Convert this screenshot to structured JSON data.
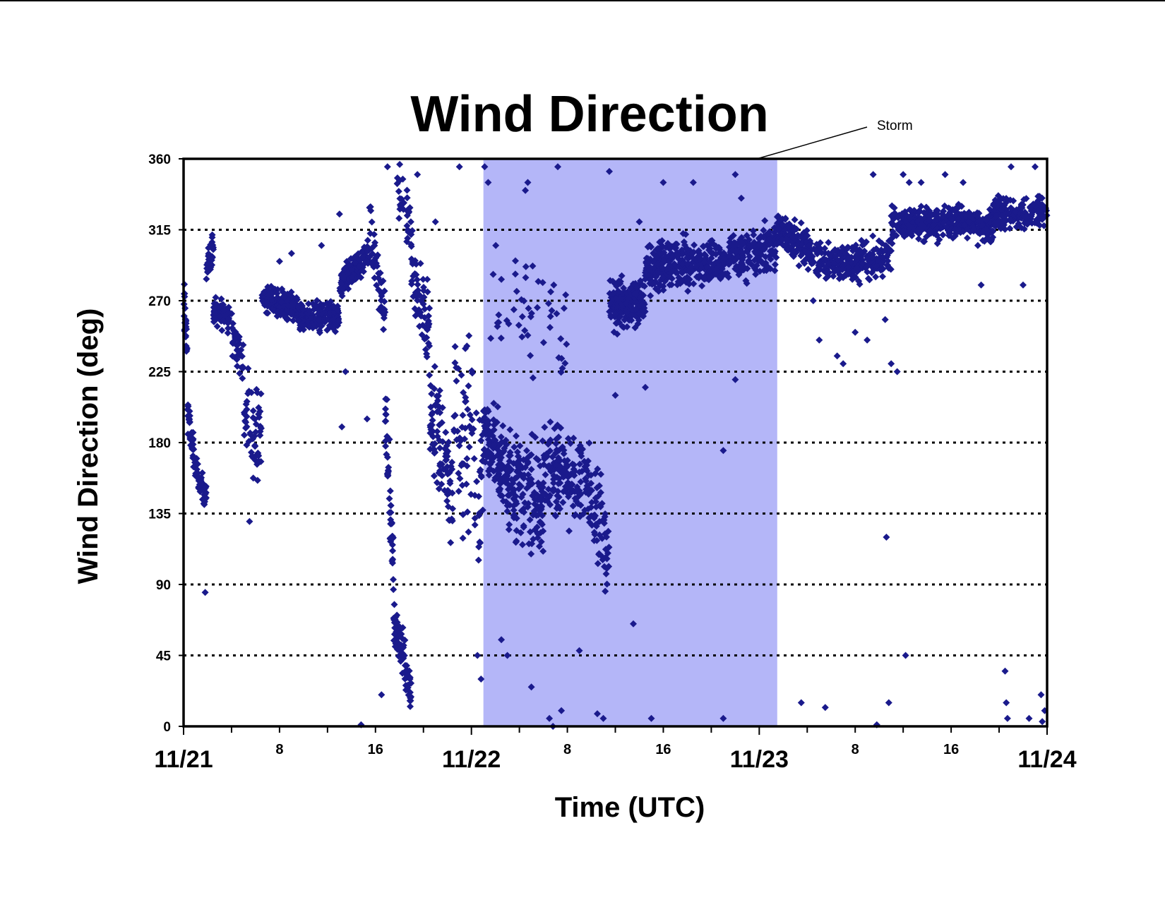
{
  "colors": {
    "marker": "#1a1a8c",
    "storm_band": "#b4b6f8",
    "gridline": "#000000"
  },
  "chart_data": {
    "type": "scatter",
    "title": "Wind Direction",
    "xlabel": "Time (UTC)",
    "ylabel": "Wind Direction (deg)",
    "x_unit": "hours since 11/21 00:00 UTC",
    "xlim": [
      0,
      72
    ],
    "ylim": [
      0,
      360
    ],
    "yticks": [
      0,
      45,
      90,
      135,
      180,
      225,
      270,
      315,
      360
    ],
    "y_gridlines": "dotted",
    "x_major_ticks": [
      {
        "x": 0,
        "label": "11/21"
      },
      {
        "x": 24,
        "label": "11/22"
      },
      {
        "x": 48,
        "label": "11/23"
      },
      {
        "x": 72,
        "label": "11/24"
      }
    ],
    "x_minor_labels": [
      {
        "x": 8,
        "label": "8"
      },
      {
        "x": 16,
        "label": "16"
      },
      {
        "x": 32,
        "label": "8"
      },
      {
        "x": 40,
        "label": "16"
      },
      {
        "x": 56,
        "label": "8"
      },
      {
        "x": 64,
        "label": "16"
      }
    ],
    "x_minor_ticks": [
      4,
      8,
      12,
      16,
      20,
      28,
      32,
      36,
      40,
      44,
      52,
      56,
      60,
      64,
      68
    ],
    "shaded_region": {
      "x_start": 25,
      "x_end": 49.5,
      "label": "Storm"
    },
    "annotation": {
      "text": "Storm"
    },
    "series": [
      {
        "marker": "diamond",
        "segments": [
          {
            "x0": 0.0,
            "x1": 0.3,
            "y0": 270,
            "y1": 240,
            "spread": 25,
            "n": 25
          },
          {
            "x0": 0.3,
            "x1": 1.0,
            "y0": 200,
            "y1": 165,
            "spread": 15,
            "n": 40
          },
          {
            "x0": 1.0,
            "x1": 1.9,
            "y0": 165,
            "y1": 145,
            "spread": 12,
            "n": 40
          },
          {
            "x0": 1.9,
            "x1": 2.5,
            "y0": 290,
            "y1": 305,
            "spread": 15,
            "n": 40
          },
          {
            "x0": 2.5,
            "x1": 3.8,
            "y0": 265,
            "y1": 258,
            "spread": 12,
            "n": 90
          },
          {
            "x0": 4.0,
            "x1": 5.0,
            "y0": 250,
            "y1": 230,
            "spread": 22,
            "n": 40
          },
          {
            "x0": 5.0,
            "x1": 6.5,
            "y0": 200,
            "y1": 185,
            "spread": 40,
            "n": 55
          },
          {
            "x0": 6.5,
            "x1": 9.5,
            "y0": 272,
            "y1": 265,
            "spread": 12,
            "n": 170
          },
          {
            "x0": 9.5,
            "x1": 13.0,
            "y0": 258,
            "y1": 260,
            "spread": 13,
            "n": 190
          },
          {
            "x0": 13.0,
            "x1": 15.5,
            "y0": 280,
            "y1": 300,
            "spread": 14,
            "n": 130
          },
          {
            "x0": 15.5,
            "x1": 16.8,
            "y0": 315,
            "y1": 260,
            "spread": 30,
            "n": 45
          },
          {
            "x0": 16.8,
            "x1": 17.5,
            "y0": 200,
            "y1": 100,
            "spread": 40,
            "n": 45
          },
          {
            "x0": 17.5,
            "x1": 19.0,
            "y0": 70,
            "y1": 20,
            "spread": 22,
            "n": 75
          },
          {
            "x0": 17.8,
            "x1": 19.2,
            "y0": 345,
            "y1": 305,
            "spread": 25,
            "n": 35
          },
          {
            "x0": 19.0,
            "x1": 20.5,
            "y0": 290,
            "y1": 255,
            "spread": 40,
            "n": 55
          },
          {
            "x0": 20.5,
            "x1": 22.5,
            "y0": 200,
            "y1": 150,
            "spread": 55,
            "n": 85
          },
          {
            "x0": 22.5,
            "x1": 25.0,
            "y0": 200,
            "y1": 150,
            "spread": 100,
            "n": 75
          },
          {
            "x0": 25.0,
            "x1": 27.5,
            "y0": 185,
            "y1": 155,
            "spread": 40,
            "n": 150
          },
          {
            "x0": 27.5,
            "x1": 30.0,
            "y0": 155,
            "y1": 140,
            "spread": 50,
            "n": 130
          },
          {
            "x0": 30.0,
            "x1": 33.5,
            "y0": 165,
            "y1": 155,
            "spread": 40,
            "n": 150
          },
          {
            "x0": 33.5,
            "x1": 35.5,
            "y0": 160,
            "y1": 110,
            "spread": 45,
            "n": 75
          },
          {
            "x0": 25.5,
            "x1": 32.0,
            "y0": 280,
            "y1": 250,
            "spread": 55,
            "n": 50
          },
          {
            "x0": 35.5,
            "x1": 38.5,
            "y0": 265,
            "y1": 270,
            "spread": 22,
            "n": 180
          },
          {
            "x0": 38.5,
            "x1": 42.0,
            "y0": 290,
            "y1": 295,
            "spread": 22,
            "n": 200
          },
          {
            "x0": 42.0,
            "x1": 49.5,
            "y0": 290,
            "y1": 305,
            "spread": 22,
            "n": 330
          },
          {
            "x0": 49.5,
            "x1": 53.5,
            "y0": 315,
            "y1": 295,
            "spread": 17,
            "n": 190
          },
          {
            "x0": 53.5,
            "x1": 59.0,
            "y0": 292,
            "y1": 298,
            "spread": 17,
            "n": 240
          },
          {
            "x0": 59.0,
            "x1": 64.5,
            "y0": 318,
            "y1": 320,
            "spread": 14,
            "n": 260
          },
          {
            "x0": 64.5,
            "x1": 67.5,
            "y0": 322,
            "y1": 315,
            "spread": 14,
            "n": 140
          },
          {
            "x0": 67.5,
            "x1": 72.0,
            "y0": 325,
            "y1": 325,
            "spread": 14,
            "n": 170
          }
        ],
        "points": [
          [
            1.8,
            85
          ],
          [
            5.5,
            130
          ],
          [
            8.0,
            295
          ],
          [
            9.0,
            300
          ],
          [
            11.5,
            305
          ],
          [
            13.0,
            325
          ],
          [
            13.2,
            190
          ],
          [
            13.5,
            225
          ],
          [
            14.8,
            1
          ],
          [
            15.3,
            195
          ],
          [
            16.5,
            20
          ],
          [
            17.0,
            355
          ],
          [
            19.5,
            350
          ],
          [
            21.0,
            320
          ],
          [
            23.0,
            355
          ],
          [
            24.5,
            45
          ],
          [
            24.8,
            30
          ],
          [
            25.1,
            355
          ],
          [
            25.4,
            345
          ],
          [
            26.5,
            55
          ],
          [
            27.0,
            45
          ],
          [
            28.5,
            340
          ],
          [
            28.7,
            345
          ],
          [
            29.0,
            25
          ],
          [
            30.5,
            5
          ],
          [
            30.8,
            0
          ],
          [
            31.2,
            355
          ],
          [
            31.5,
            10
          ],
          [
            33.0,
            48
          ],
          [
            34.5,
            8
          ],
          [
            35.0,
            5
          ],
          [
            35.5,
            352
          ],
          [
            36.0,
            210
          ],
          [
            37.5,
            65
          ],
          [
            38.0,
            320
          ],
          [
            38.5,
            215
          ],
          [
            39.0,
            5
          ],
          [
            40.0,
            345
          ],
          [
            42.5,
            345
          ],
          [
            45.0,
            5
          ],
          [
            46.0,
            350
          ],
          [
            46.5,
            335
          ],
          [
            45.0,
            175
          ],
          [
            46.0,
            220
          ],
          [
            51.5,
            15
          ],
          [
            52.5,
            270
          ],
          [
            53.0,
            245
          ],
          [
            53.5,
            12
          ],
          [
            54.5,
            235
          ],
          [
            55.0,
            230
          ],
          [
            56.0,
            250
          ],
          [
            57.0,
            245
          ],
          [
            57.5,
            350
          ],
          [
            57.8,
            1
          ],
          [
            58.5,
            258
          ],
          [
            59.0,
            230
          ],
          [
            59.5,
            225
          ],
          [
            60.0,
            350
          ],
          [
            60.5,
            345
          ],
          [
            58.6,
            120
          ],
          [
            58.8,
            15
          ],
          [
            60.2,
            45
          ],
          [
            61.5,
            345
          ],
          [
            63.5,
            350
          ],
          [
            65.0,
            345
          ],
          [
            66.5,
            280
          ],
          [
            68.5,
            35
          ],
          [
            68.6,
            15
          ],
          [
            68.7,
            5
          ],
          [
            69.0,
            355
          ],
          [
            70.5,
            5
          ],
          [
            71.0,
            355
          ],
          [
            71.5,
            20
          ],
          [
            71.8,
            10
          ],
          [
            71.6,
            3
          ],
          [
            70.0,
            280
          ]
        ]
      }
    ]
  }
}
